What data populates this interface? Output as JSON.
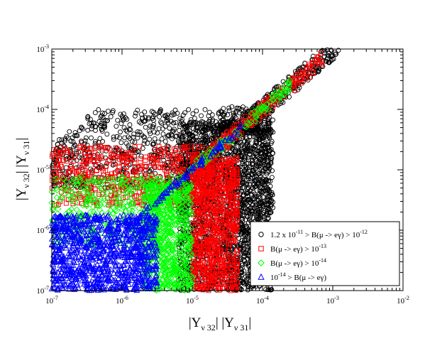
{
  "chart_data": {
    "type": "scatter",
    "xscale": "log",
    "yscale": "log",
    "xlim": [
      1e-07,
      0.01
    ],
    "ylim": [
      1e-07,
      0.001
    ],
    "xlabel": {
      "base": "|Y",
      "sub1": "ν 32",
      "mid": "| |Y",
      "sub2": "ν 31",
      "end": "|"
    },
    "ylabel": {
      "base": "|Y",
      "sub1": "ν 32",
      "mid": "| |Y",
      "sub2": "ν 31",
      "end": "|"
    },
    "x_ticks": [
      {
        "value": 1e-07,
        "base": "10",
        "exp": "-7"
      },
      {
        "value": 1e-06,
        "base": "10",
        "exp": "-6"
      },
      {
        "value": 1e-05,
        "base": "10",
        "exp": "-5"
      },
      {
        "value": 0.0001,
        "base": "10",
        "exp": "-4"
      },
      {
        "value": 0.001,
        "base": "10",
        "exp": "-3"
      },
      {
        "value": 0.01,
        "base": "10",
        "exp": "-2"
      }
    ],
    "y_ticks": [
      {
        "value": 1e-07,
        "base": "10",
        "exp": "-7"
      },
      {
        "value": 1e-06,
        "base": "10",
        "exp": "-6"
      },
      {
        "value": 1e-05,
        "base": "10",
        "exp": "-5"
      },
      {
        "value": 0.0001,
        "base": "10",
        "exp": "-4"
      },
      {
        "value": 0.001,
        "base": "10",
        "exp": "-3"
      }
    ],
    "grid": false,
    "legend_position": "bottom-right",
    "series": [
      {
        "id": "black",
        "marker": "circle",
        "color": "#000000",
        "legend": [
          {
            "t": "1.2 x 10"
          },
          {
            "t": "-11",
            "sup": true
          },
          {
            "t": " > B(μ -> eγ) > 10"
          },
          {
            "t": "-12",
            "sup": true
          }
        ],
        "regions": [
          {
            "x": [
              -7.0,
              -4.55
            ],
            "y": [
              -5.3,
              -4.0
            ],
            "ymaxFromDiag": true,
            "n": 700
          },
          {
            "x": [
              -5.2,
              -3.85
            ],
            "y": [
              -7.0,
              -4.2
            ],
            "ymaxFromDiag": true,
            "n": 1900
          },
          {
            "x": [
              -4.5,
              -3.9
            ],
            "y": [
              -6.9,
              -4.3
            ],
            "n": 400
          },
          {
            "x": [
              -4.3,
              -2.9
            ],
            "diagonal": true,
            "spread": 0.18,
            "n": 260
          },
          {
            "x": [
              -4.6,
              -3.85
            ],
            "y": [
              -4.4,
              -3.95
            ],
            "n": 180
          }
        ]
      },
      {
        "id": "red",
        "marker": "square",
        "color": "#ff0000",
        "legend": [
          {
            "t": "B(μ -> eγ) > 10"
          },
          {
            "t": "-13",
            "sup": true
          }
        ],
        "regions": [
          {
            "x": [
              -7.0,
              -4.7
            ],
            "y": [
              -5.6,
              -4.6
            ],
            "ymaxFromDiag": true,
            "n": 550
          },
          {
            "x": [
              -5.0,
              -4.35
            ],
            "y": [
              -7.0,
              -4.8
            ],
            "ymaxFromDiag": true,
            "n": 850
          },
          {
            "x": [
              -4.8,
              -3.15
            ],
            "diagonal": true,
            "spread": 0.14,
            "n": 180
          }
        ]
      },
      {
        "id": "green",
        "marker": "diamond",
        "color": "#00ff00",
        "legend": [
          {
            "t": "B(μ -> eγ) > 10"
          },
          {
            "t": "-14",
            "sup": true
          }
        ],
        "regions": [
          {
            "x": [
              -7.0,
              -5.3
            ],
            "y": [
              -6.25,
              -5.1
            ],
            "ymaxFromDiag": true,
            "n": 380
          },
          {
            "x": [
              -5.7,
              -5.0
            ],
            "y": [
              -7.0,
              -5.2
            ],
            "ymaxFromDiag": true,
            "n": 650
          },
          {
            "x": [
              -5.6,
              -3.6
            ],
            "diagonal": true,
            "spread": 0.1,
            "n": 150
          }
        ]
      },
      {
        "id": "blue",
        "marker": "triangle",
        "color": "#0000ff",
        "legend": [
          {
            "t": "10"
          },
          {
            "t": "-14",
            "sup": true
          },
          {
            "t": " > B(μ -> eγ)"
          }
        ],
        "regions": [
          {
            "x": [
              -7.0,
              -5.5
            ],
            "y": [
              -7.0,
              -5.75
            ],
            "ymaxFromDiag": true,
            "n": 1100
          },
          {
            "x": [
              -6.0,
              -4.3
            ],
            "diagonal": true,
            "spread": 0.06,
            "n": 90
          }
        ]
      }
    ]
  }
}
